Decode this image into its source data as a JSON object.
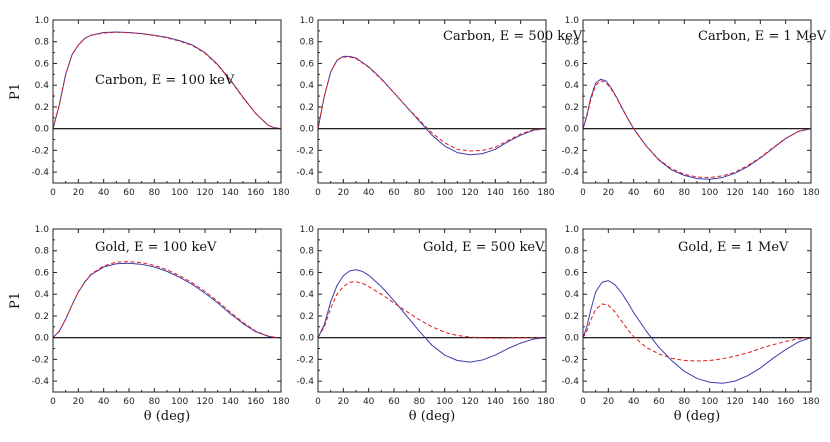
{
  "colors": {
    "series_solid": "#3b3bb0",
    "series_dashed": "#e01a1a",
    "zero_line": "#000000"
  },
  "chart_data": [
    {
      "type": "line",
      "title": "Carbon, E = 100 keV",
      "ylabel": "P1",
      "xlabel": "",
      "xlim": [
        0,
        180
      ],
      "ylim": [
        -0.5,
        1.0
      ],
      "xticks": [
        0,
        20,
        40,
        60,
        80,
        100,
        120,
        140,
        160,
        180
      ],
      "yticks": [
        1.0,
        0.8,
        0.6,
        0.4,
        0.2,
        0.0,
        -0.2,
        -0.4
      ],
      "x": [
        0,
        5,
        10,
        15,
        20,
        25,
        30,
        40,
        50,
        60,
        70,
        80,
        90,
        100,
        110,
        120,
        130,
        140,
        150,
        160,
        170,
        175,
        180
      ],
      "series": [
        {
          "style": "solid",
          "values": [
            0,
            0.22,
            0.5,
            0.68,
            0.77,
            0.83,
            0.86,
            0.885,
            0.89,
            0.885,
            0.875,
            0.86,
            0.84,
            0.81,
            0.77,
            0.7,
            0.59,
            0.45,
            0.29,
            0.14,
            0.03,
            0.008,
            0
          ]
        },
        {
          "style": "dashed",
          "values": [
            0,
            0.22,
            0.5,
            0.68,
            0.77,
            0.83,
            0.86,
            0.88,
            0.887,
            0.883,
            0.873,
            0.857,
            0.836,
            0.805,
            0.765,
            0.695,
            0.585,
            0.445,
            0.285,
            0.14,
            0.03,
            0.008,
            0
          ]
        }
      ]
    },
    {
      "type": "line",
      "title": "Carbon, E = 500 keV",
      "ylabel": "",
      "xlabel": "",
      "xlim": [
        0,
        180
      ],
      "ylim": [
        -0.5,
        1.0
      ],
      "xticks": [
        0,
        20,
        40,
        60,
        80,
        100,
        120,
        140,
        160,
        180
      ],
      "yticks": [
        1.0,
        0.8,
        0.6,
        0.4,
        0.2,
        0.0,
        -0.2,
        -0.4
      ],
      "x": [
        0,
        5,
        10,
        15,
        20,
        25,
        30,
        40,
        50,
        60,
        70,
        80,
        90,
        100,
        110,
        120,
        130,
        140,
        150,
        160,
        170,
        180
      ],
      "series": [
        {
          "style": "solid",
          "values": [
            0,
            0.3,
            0.52,
            0.63,
            0.665,
            0.665,
            0.65,
            0.57,
            0.46,
            0.33,
            0.2,
            0.07,
            -0.06,
            -0.16,
            -0.22,
            -0.24,
            -0.23,
            -0.19,
            -0.12,
            -0.06,
            -0.015,
            0
          ]
        },
        {
          "style": "dashed",
          "values": [
            0,
            0.3,
            0.52,
            0.63,
            0.66,
            0.66,
            0.645,
            0.565,
            0.455,
            0.33,
            0.2,
            0.08,
            -0.04,
            -0.13,
            -0.19,
            -0.205,
            -0.2,
            -0.17,
            -0.11,
            -0.05,
            -0.01,
            0
          ]
        }
      ]
    },
    {
      "type": "line",
      "title": "Carbon, E = 1 MeV",
      "ylabel": "",
      "xlabel": "",
      "xlim": [
        0,
        180
      ],
      "ylim": [
        -0.5,
        1.0
      ],
      "xticks": [
        0,
        20,
        40,
        60,
        80,
        100,
        120,
        140,
        160,
        180
      ],
      "yticks": [
        1.0,
        0.8,
        0.6,
        0.4,
        0.2,
        0.0,
        -0.2,
        -0.4
      ],
      "x": [
        0,
        3,
        6,
        10,
        14,
        18,
        22,
        26,
        30,
        35,
        40,
        50,
        60,
        70,
        80,
        90,
        100,
        110,
        120,
        130,
        140,
        150,
        160,
        170,
        180
      ],
      "series": [
        {
          "style": "solid",
          "values": [
            0,
            0.12,
            0.28,
            0.42,
            0.455,
            0.44,
            0.38,
            0.3,
            0.21,
            0.1,
            0.0,
            -0.16,
            -0.29,
            -0.38,
            -0.43,
            -0.46,
            -0.465,
            -0.45,
            -0.41,
            -0.35,
            -0.27,
            -0.18,
            -0.09,
            -0.025,
            0
          ]
        },
        {
          "style": "dashed",
          "values": [
            0,
            0.11,
            0.26,
            0.4,
            0.44,
            0.425,
            0.37,
            0.295,
            0.205,
            0.1,
            0.0,
            -0.16,
            -0.285,
            -0.37,
            -0.42,
            -0.445,
            -0.45,
            -0.435,
            -0.4,
            -0.34,
            -0.265,
            -0.175,
            -0.09,
            -0.025,
            0
          ]
        }
      ]
    },
    {
      "type": "line",
      "title": "Gold, E = 100 keV",
      "ylabel": "P1",
      "xlabel": "θ (deg)",
      "xlim": [
        0,
        180
      ],
      "ylim": [
        -0.5,
        1.0
      ],
      "xticks": [
        0,
        20,
        40,
        60,
        80,
        100,
        120,
        140,
        160,
        180
      ],
      "yticks": [
        1.0,
        0.8,
        0.6,
        0.4,
        0.2,
        0.0,
        -0.2,
        -0.4
      ],
      "x": [
        0,
        5,
        10,
        15,
        20,
        25,
        30,
        40,
        50,
        60,
        70,
        80,
        90,
        100,
        110,
        120,
        130,
        140,
        150,
        160,
        170,
        175,
        180
      ],
      "series": [
        {
          "style": "solid",
          "values": [
            0,
            0.06,
            0.17,
            0.3,
            0.42,
            0.51,
            0.58,
            0.65,
            0.68,
            0.685,
            0.675,
            0.65,
            0.61,
            0.555,
            0.49,
            0.41,
            0.32,
            0.22,
            0.13,
            0.055,
            0.012,
            0.003,
            0
          ]
        },
        {
          "style": "dashed",
          "values": [
            0,
            0.06,
            0.17,
            0.3,
            0.42,
            0.51,
            0.585,
            0.66,
            0.695,
            0.7,
            0.69,
            0.665,
            0.625,
            0.57,
            0.505,
            0.425,
            0.335,
            0.235,
            0.14,
            0.06,
            0.014,
            0.004,
            0
          ]
        }
      ]
    },
    {
      "type": "line",
      "title": "Gold, E = 500 keV",
      "ylabel": "",
      "xlabel": "θ (deg)",
      "xlim": [
        0,
        180
      ],
      "ylim": [
        -0.5,
        1.0
      ],
      "xticks": [
        0,
        20,
        40,
        60,
        80,
        100,
        120,
        140,
        160,
        180
      ],
      "yticks": [
        1.0,
        0.8,
        0.6,
        0.4,
        0.2,
        0.0,
        -0.2,
        -0.4
      ],
      "x": [
        0,
        5,
        10,
        15,
        20,
        25,
        30,
        35,
        40,
        50,
        60,
        70,
        80,
        90,
        100,
        110,
        120,
        130,
        140,
        150,
        160,
        170,
        180
      ],
      "series": [
        {
          "style": "solid",
          "values": [
            0,
            0.12,
            0.33,
            0.48,
            0.57,
            0.615,
            0.625,
            0.61,
            0.575,
            0.47,
            0.34,
            0.2,
            0.06,
            -0.07,
            -0.16,
            -0.21,
            -0.225,
            -0.205,
            -0.16,
            -0.1,
            -0.05,
            -0.013,
            0
          ]
        },
        {
          "style": "dashed",
          "values": [
            0,
            0.1,
            0.27,
            0.4,
            0.47,
            0.51,
            0.515,
            0.5,
            0.47,
            0.4,
            0.32,
            0.24,
            0.165,
            0.1,
            0.05,
            0.02,
            0.005,
            -0.003,
            -0.005,
            -0.004,
            -0.002,
            -0.001,
            0
          ]
        }
      ]
    },
    {
      "type": "line",
      "title": "Gold, E = 1 MeV",
      "ylabel": "",
      "xlabel": "θ (deg)",
      "xlim": [
        0,
        180
      ],
      "ylim": [
        -0.5,
        1.0
      ],
      "xticks": [
        0,
        20,
        40,
        60,
        80,
        100,
        120,
        140,
        160,
        180
      ],
      "yticks": [
        1.0,
        0.8,
        0.6,
        0.4,
        0.2,
        0.0,
        -0.2,
        -0.4
      ],
      "x": [
        0,
        3,
        6,
        10,
        15,
        20,
        25,
        30,
        35,
        40,
        50,
        60,
        70,
        80,
        90,
        100,
        110,
        120,
        130,
        140,
        150,
        160,
        170,
        180
      ],
      "series": [
        {
          "style": "solid",
          "values": [
            0,
            0.1,
            0.25,
            0.42,
            0.51,
            0.525,
            0.49,
            0.42,
            0.33,
            0.23,
            0.06,
            -0.09,
            -0.21,
            -0.31,
            -0.375,
            -0.41,
            -0.42,
            -0.4,
            -0.35,
            -0.28,
            -0.19,
            -0.11,
            -0.04,
            0
          ]
        },
        {
          "style": "dashed",
          "values": [
            0,
            0.06,
            0.16,
            0.26,
            0.31,
            0.3,
            0.24,
            0.16,
            0.08,
            0.01,
            -0.09,
            -0.15,
            -0.19,
            -0.21,
            -0.215,
            -0.21,
            -0.195,
            -0.17,
            -0.14,
            -0.1,
            -0.065,
            -0.035,
            -0.012,
            0
          ]
        }
      ]
    }
  ]
}
